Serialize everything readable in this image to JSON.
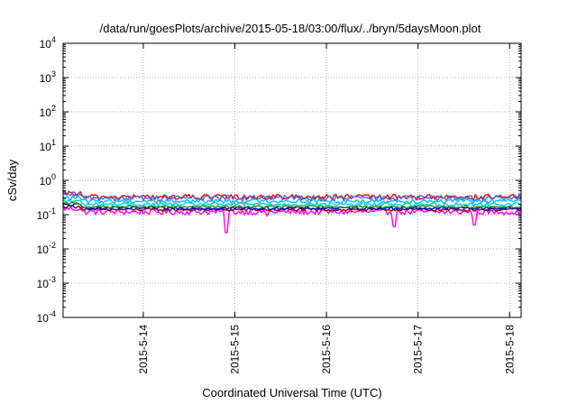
{
  "chart_data": {
    "type": "line",
    "title": "/data/run/goesPlots/archive/2015-05-18/03:00/flux/../bryn/5daysMoon.plot",
    "xlabel": "Coordinated Universal Time (UTC)",
    "ylabel": "cSv/day",
    "yscale": "log",
    "ylim": [
      0.0001,
      10000
    ],
    "ytick_exponents": [
      -4,
      -3,
      -2,
      -1,
      0,
      1,
      2,
      3,
      4
    ],
    "x_start": "2015-05-13T03:00",
    "x_end": "2015-05-18T03:00",
    "x_ticks": [
      "2015-5-14",
      "2015-5-15",
      "2015-5-16",
      "2015-5-17",
      "2015-5-18"
    ],
    "grid": true,
    "series": [
      {
        "color": "#ff00ff",
        "base": 0.12,
        "amp": 0.18,
        "dips": [
          [
            1.78,
            0.03
          ],
          [
            4.48,
            0.05
          ],
          [
            3.62,
            0.045
          ],
          [
            2.23,
            0.09
          ]
        ]
      },
      {
        "color": "#8b0000",
        "base": 0.14,
        "amp": 0.1,
        "dips": []
      },
      {
        "color": "#0000cd",
        "base": 0.155,
        "amp": 0.1,
        "dips": []
      },
      {
        "color": "#228b22",
        "base": 0.17,
        "amp": 0.08,
        "dips": []
      },
      {
        "color": "#00ced1",
        "base": 0.2,
        "amp": 0.12,
        "dips": []
      },
      {
        "color": "#00bfff",
        "base": 0.25,
        "amp": 0.15,
        "dips": []
      },
      {
        "color": "#ff0000",
        "base": 0.33,
        "amp": 0.18,
        "dips": []
      },
      {
        "color": "#4169e1",
        "base": 0.31,
        "amp": 0.18,
        "dips": []
      }
    ]
  }
}
